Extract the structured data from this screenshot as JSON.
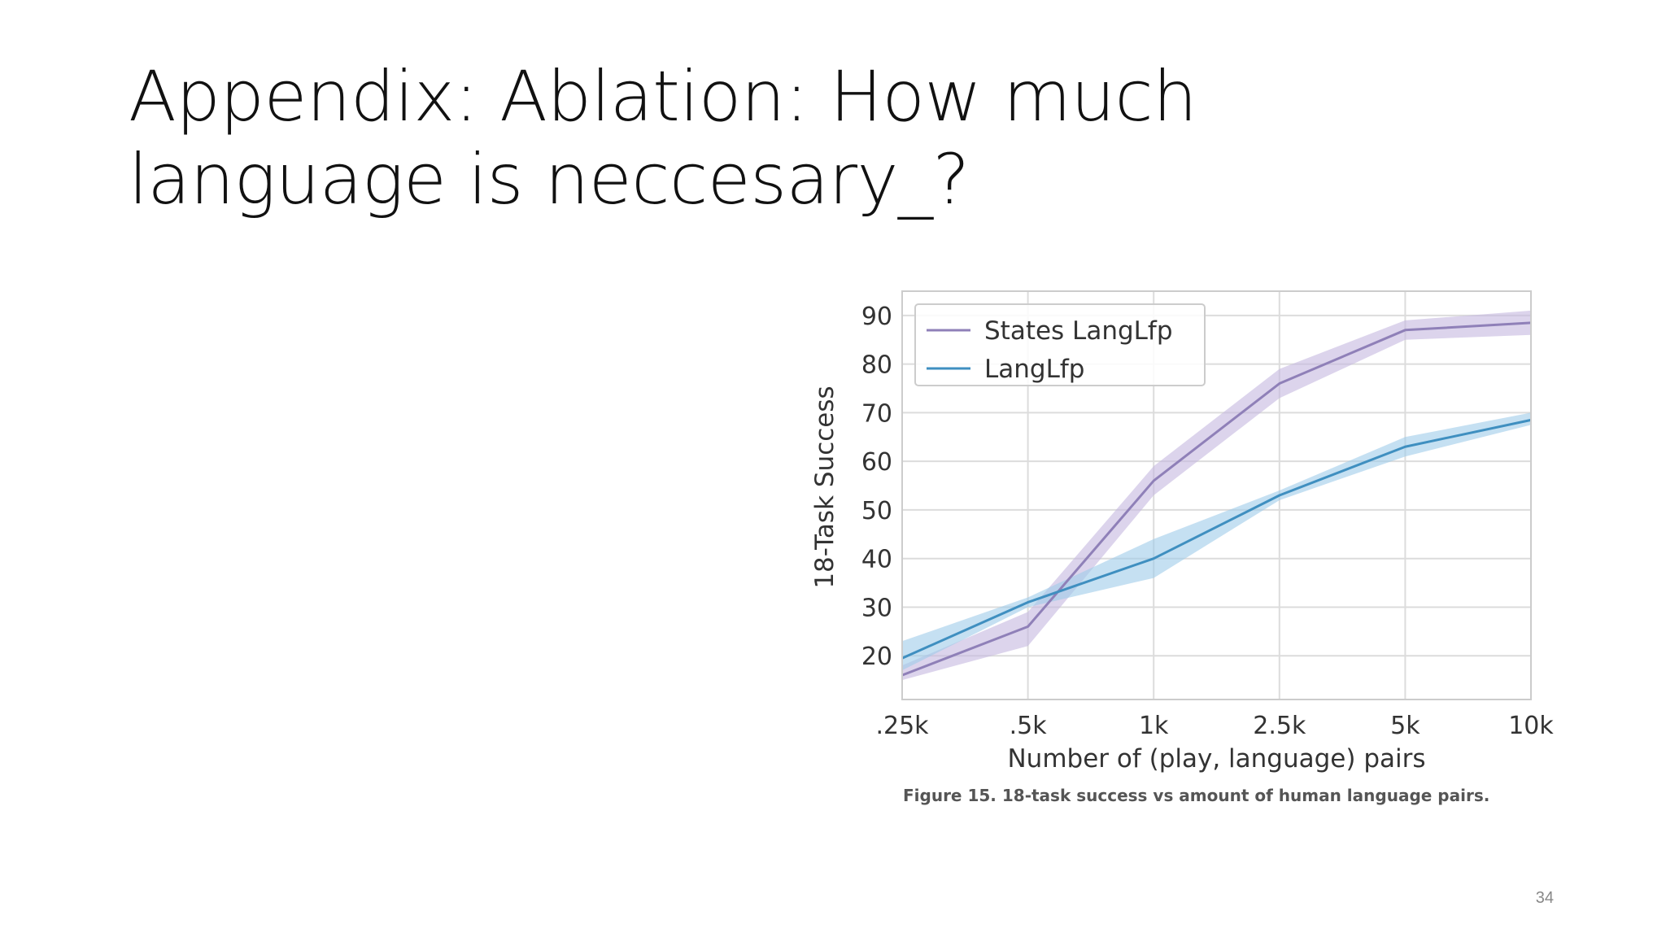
{
  "slide": {
    "title": "Appendix: Ablation: How much language is neccesary_?",
    "page_number": "34"
  },
  "figure": {
    "caption": "Figure 15. 18-task success vs amount of human language pairs."
  },
  "chart_data": {
    "type": "line",
    "title": "",
    "xlabel": "Number of (play, language) pairs",
    "ylabel": "18-Task Success",
    "categories": [
      ".25k",
      ".5k",
      "1k",
      "2.5k",
      "5k",
      "10k"
    ],
    "ylim": [
      11,
      95
    ],
    "yticks": [
      20,
      30,
      40,
      50,
      60,
      70,
      80,
      90
    ],
    "grid": true,
    "legend_position": "top-left",
    "series": [
      {
        "name": "States LangLfp",
        "values": [
          16,
          26,
          56,
          76,
          87,
          88.5
        ],
        "lower": [
          15,
          22,
          53,
          73,
          85,
          86
        ],
        "upper": [
          18,
          29,
          59,
          79,
          89,
          91
        ],
        "color": "#8f80b8",
        "band_color": "#c5b8e0"
      },
      {
        "name": "LangLfp",
        "values": [
          19.5,
          31,
          40,
          53,
          63,
          68.5
        ],
        "lower": [
          17,
          30,
          36,
          52,
          61,
          67.5
        ],
        "upper": [
          23,
          32,
          44,
          54,
          65,
          70
        ],
        "color": "#3f8fc0",
        "band_color": "#9ecbea"
      }
    ]
  }
}
